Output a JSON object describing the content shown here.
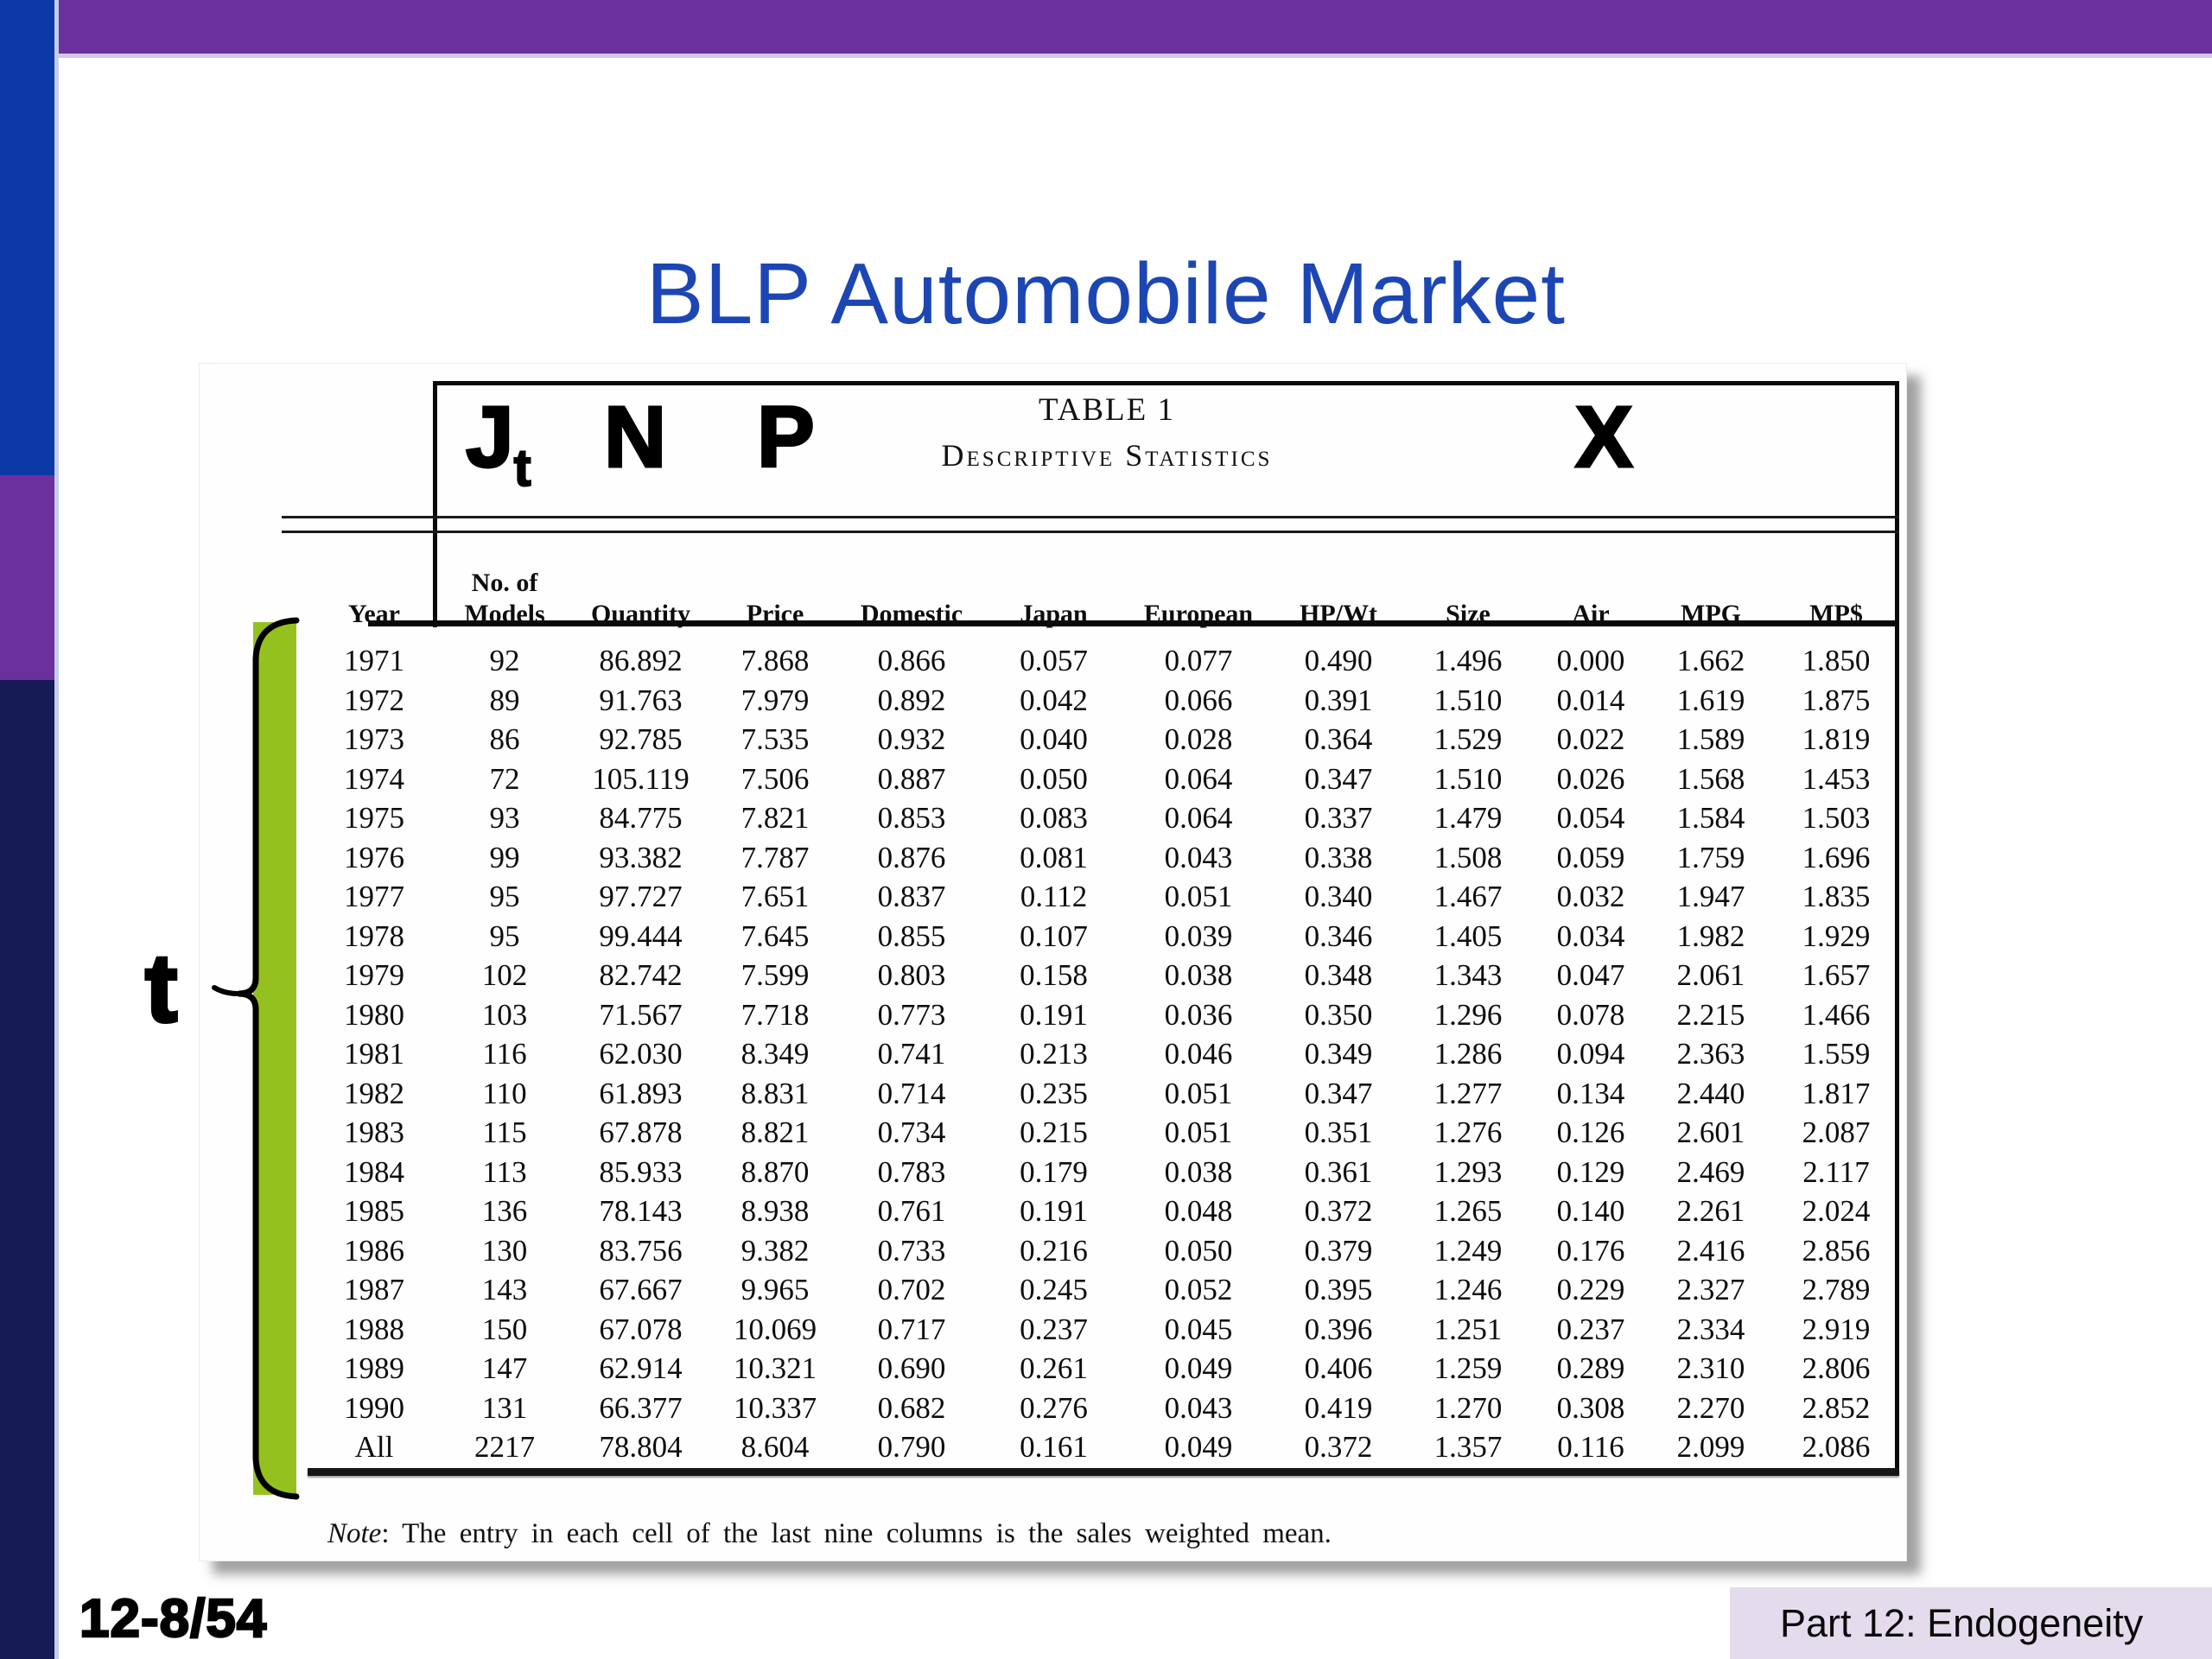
{
  "slide": {
    "title": "BLP Automobile Market",
    "page_label": "12-8/54",
    "footer_label": "Part 12: Endogeneity"
  },
  "annotations": {
    "j": "J",
    "j_sub": "t",
    "n": "N",
    "p": "P",
    "x": "X",
    "t_bracket": "t"
  },
  "table": {
    "caption_line1": "TABLE 1",
    "caption_line2": "Descriptive Statistics",
    "columns": [
      "Year",
      "No. of\nModels",
      "Quantity",
      "Price",
      "Domestic",
      "Japan",
      "European",
      "HP/Wt",
      "Size",
      "Air",
      "MPG",
      "MP$"
    ],
    "rows": [
      [
        "1971",
        "92",
        "86.892",
        "7.868",
        "0.866",
        "0.057",
        "0.077",
        "0.490",
        "1.496",
        "0.000",
        "1.662",
        "1.850"
      ],
      [
        "1972",
        "89",
        "91.763",
        "7.979",
        "0.892",
        "0.042",
        "0.066",
        "0.391",
        "1.510",
        "0.014",
        "1.619",
        "1.875"
      ],
      [
        "1973",
        "86",
        "92.785",
        "7.535",
        "0.932",
        "0.040",
        "0.028",
        "0.364",
        "1.529",
        "0.022",
        "1.589",
        "1.819"
      ],
      [
        "1974",
        "72",
        "105.119",
        "7.506",
        "0.887",
        "0.050",
        "0.064",
        "0.347",
        "1.510",
        "0.026",
        "1.568",
        "1.453"
      ],
      [
        "1975",
        "93",
        "84.775",
        "7.821",
        "0.853",
        "0.083",
        "0.064",
        "0.337",
        "1.479",
        "0.054",
        "1.584",
        "1.503"
      ],
      [
        "1976",
        "99",
        "93.382",
        "7.787",
        "0.876",
        "0.081",
        "0.043",
        "0.338",
        "1.508",
        "0.059",
        "1.759",
        "1.696"
      ],
      [
        "1977",
        "95",
        "97.727",
        "7.651",
        "0.837",
        "0.112",
        "0.051",
        "0.340",
        "1.467",
        "0.032",
        "1.947",
        "1.835"
      ],
      [
        "1978",
        "95",
        "99.444",
        "7.645",
        "0.855",
        "0.107",
        "0.039",
        "0.346",
        "1.405",
        "0.034",
        "1.982",
        "1.929"
      ],
      [
        "1979",
        "102",
        "82.742",
        "7.599",
        "0.803",
        "0.158",
        "0.038",
        "0.348",
        "1.343",
        "0.047",
        "2.061",
        "1.657"
      ],
      [
        "1980",
        "103",
        "71.567",
        "7.718",
        "0.773",
        "0.191",
        "0.036",
        "0.350",
        "1.296",
        "0.078",
        "2.215",
        "1.466"
      ],
      [
        "1981",
        "116",
        "62.030",
        "8.349",
        "0.741",
        "0.213",
        "0.046",
        "0.349",
        "1.286",
        "0.094",
        "2.363",
        "1.559"
      ],
      [
        "1982",
        "110",
        "61.893",
        "8.831",
        "0.714",
        "0.235",
        "0.051",
        "0.347",
        "1.277",
        "0.134",
        "2.440",
        "1.817"
      ],
      [
        "1983",
        "115",
        "67.878",
        "8.821",
        "0.734",
        "0.215",
        "0.051",
        "0.351",
        "1.276",
        "0.126",
        "2.601",
        "2.087"
      ],
      [
        "1984",
        "113",
        "85.933",
        "8.870",
        "0.783",
        "0.179",
        "0.038",
        "0.361",
        "1.293",
        "0.129",
        "2.469",
        "2.117"
      ],
      [
        "1985",
        "136",
        "78.143",
        "8.938",
        "0.761",
        "0.191",
        "0.048",
        "0.372",
        "1.265",
        "0.140",
        "2.261",
        "2.024"
      ],
      [
        "1986",
        "130",
        "83.756",
        "9.382",
        "0.733",
        "0.216",
        "0.050",
        "0.379",
        "1.249",
        "0.176",
        "2.416",
        "2.856"
      ],
      [
        "1987",
        "143",
        "67.667",
        "9.965",
        "0.702",
        "0.245",
        "0.052",
        "0.395",
        "1.246",
        "0.229",
        "2.327",
        "2.789"
      ],
      [
        "1988",
        "150",
        "67.078",
        "10.069",
        "0.717",
        "0.237",
        "0.045",
        "0.396",
        "1.251",
        "0.237",
        "2.334",
        "2.919"
      ],
      [
        "1989",
        "147",
        "62.914",
        "10.321",
        "0.690",
        "0.261",
        "0.049",
        "0.406",
        "1.259",
        "0.289",
        "2.310",
        "2.806"
      ],
      [
        "1990",
        "131",
        "66.377",
        "10.337",
        "0.682",
        "0.276",
        "0.043",
        "0.419",
        "1.270",
        "0.308",
        "2.270",
        "2.852"
      ],
      [
        "All",
        "2217",
        "78.804",
        "8.604",
        "0.790",
        "0.161",
        "0.049",
        "0.372",
        "1.357",
        "0.116",
        "2.099",
        "2.086"
      ]
    ],
    "note_label": "Note",
    "note_text": ": The entry in each cell of the last nine columns is the sales weighted mean."
  },
  "colors": {
    "accent_purple": "#6C2F9E",
    "sidebar_blue": "#0B3AA6",
    "sidebar_navy": "#161A55",
    "bracket_green": "#95C11F",
    "title_blue": "#1C46B4",
    "footer_lavender": "#E4DCEC"
  }
}
